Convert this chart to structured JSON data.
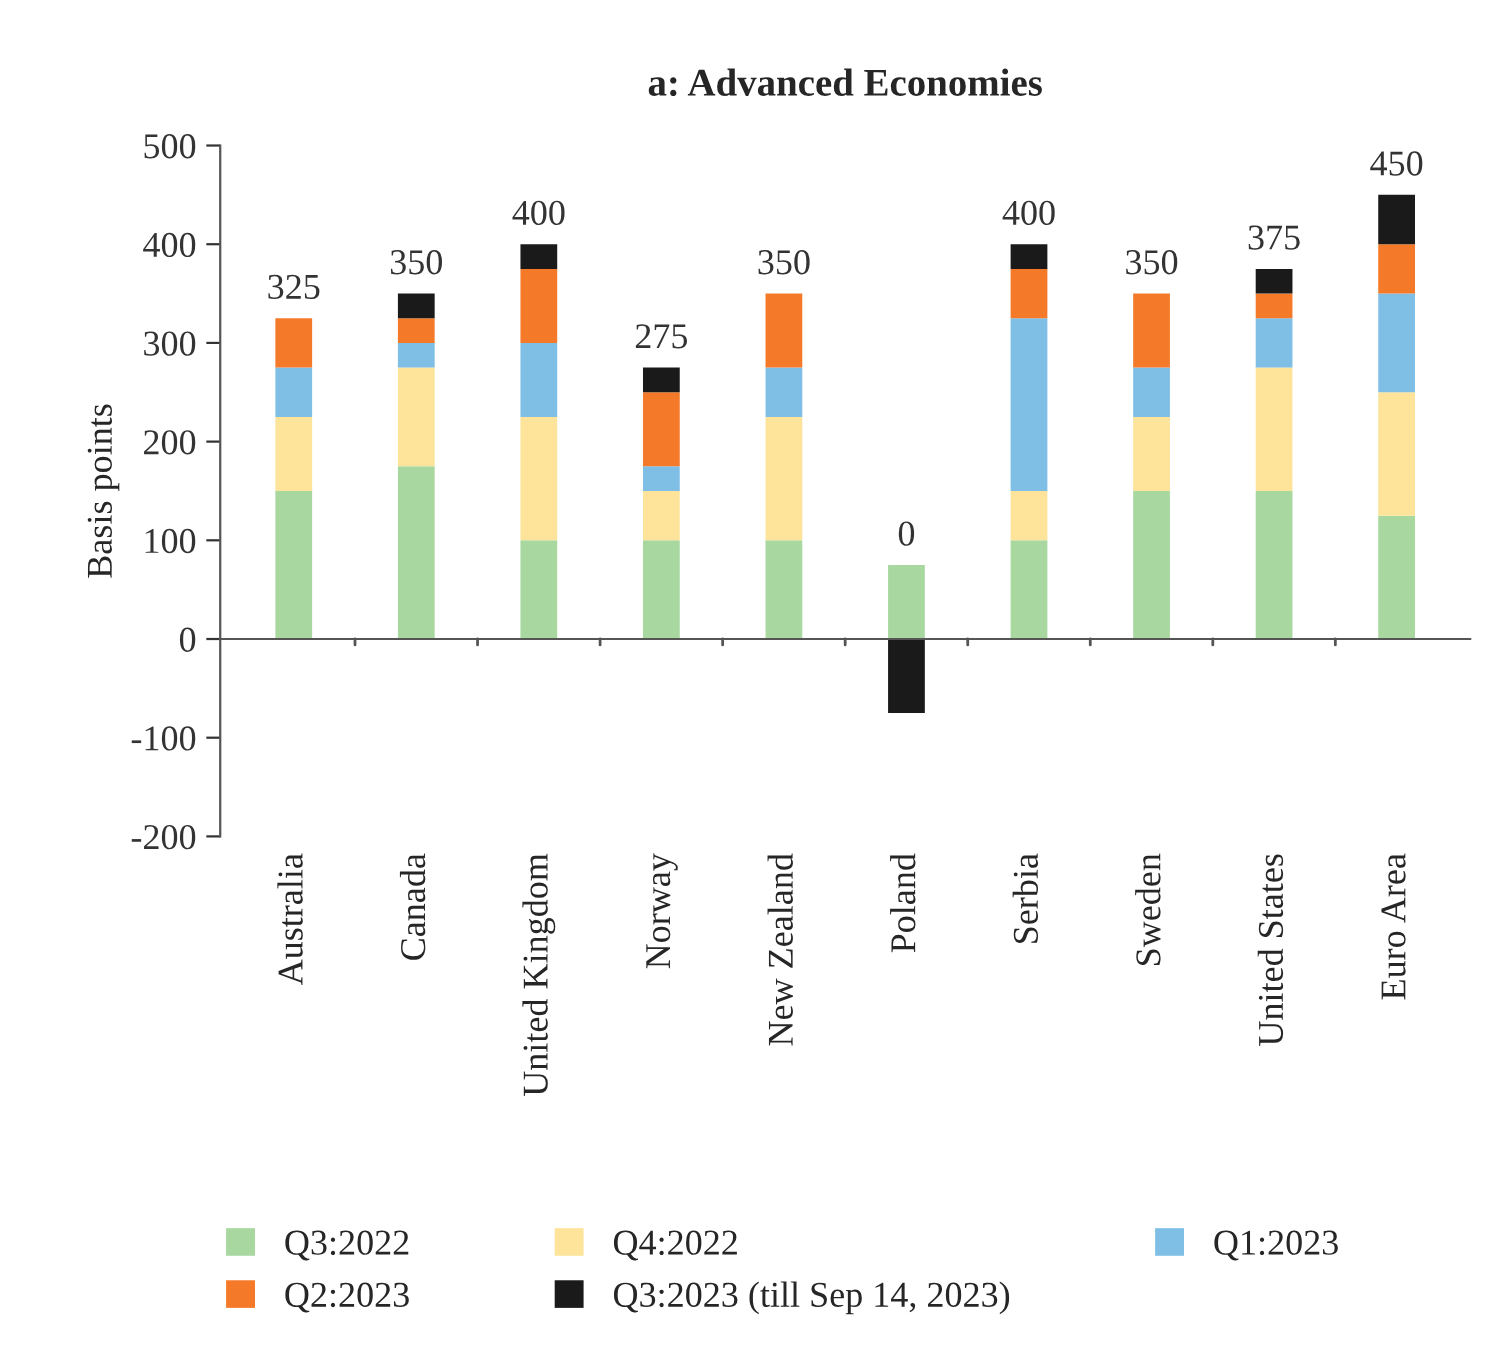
{
  "chart_data": {
    "type": "bar",
    "title": "a: Advanced Economies",
    "ylabel": "Basis points",
    "stacked": true,
    "categories": [
      "Australia",
      "Canada",
      "United Kingdom",
      "Norway",
      "New Zealand",
      "Poland",
      "Serbia",
      "Sweden",
      "United States",
      "Euro Area"
    ],
    "series": [
      {
        "name": "Q3:2022",
        "color": "#a8d8a0",
        "values": [
          150,
          175,
          100,
          100,
          100,
          75,
          100,
          150,
          150,
          125
        ]
      },
      {
        "name": "Q4:2022",
        "color": "#fde49a",
        "values": [
          75,
          100,
          125,
          50,
          125,
          0,
          50,
          75,
          125,
          125
        ]
      },
      {
        "name": "Q1:2023",
        "color": "#7fbfe6",
        "values": [
          50,
          25,
          75,
          25,
          50,
          0,
          175,
          50,
          50,
          100
        ]
      },
      {
        "name": "Q2:2023",
        "color": "#f47a2a",
        "values": [
          50,
          25,
          75,
          75,
          75,
          0,
          50,
          75,
          25,
          50
        ]
      },
      {
        "name": "Q3:2023 (till Sep 14, 2023)",
        "color": "#1a1a1a",
        "values": [
          0,
          25,
          25,
          25,
          0,
          -75,
          25,
          0,
          25,
          50
        ]
      }
    ],
    "totals": [
      "325",
      "350",
      "400",
      "275",
      "350",
      "0",
      "400",
      "350",
      "375",
      "450"
    ],
    "ylim": [
      -200,
      500
    ],
    "yticks": [
      -200,
      -100,
      0,
      100,
      200,
      300,
      400,
      500
    ],
    "legend": "bottom"
  }
}
